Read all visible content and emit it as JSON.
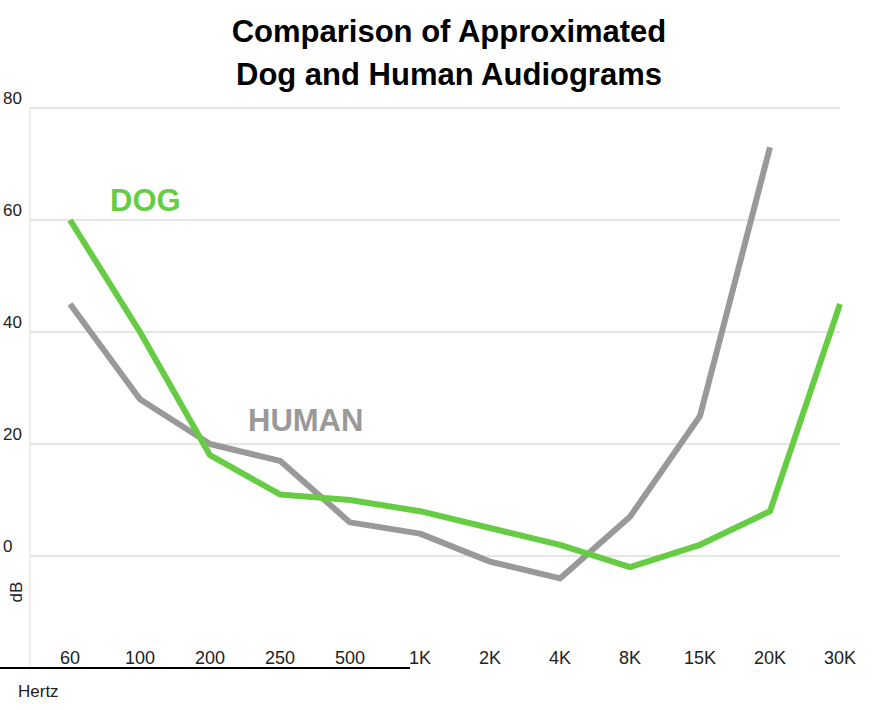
{
  "chart_data": {
    "type": "line",
    "title": "Comparison of Approximated\nDog and Human Audiograms",
    "x_label": "Hertz",
    "y_label": "dB",
    "categories": [
      "60",
      "100",
      "200",
      "250",
      "500",
      "1K",
      "2K",
      "4K",
      "8K",
      "15K",
      "20K",
      "30K"
    ],
    "series": [
      {
        "name": "DOG",
        "color": "#66cc44",
        "values": [
          60,
          40,
          18,
          11,
          10,
          8,
          5,
          2,
          -2,
          2,
          8,
          45
        ]
      },
      {
        "name": "HUMAN",
        "color": "#999999",
        "values": [
          45,
          28,
          20,
          17,
          6,
          4,
          -1,
          -4,
          7,
          25,
          73,
          null
        ]
      }
    ],
    "ylim": [
      -20,
      80
    ],
    "yticks": [
      0,
      20,
      40,
      60,
      80
    ],
    "grid": true
  }
}
